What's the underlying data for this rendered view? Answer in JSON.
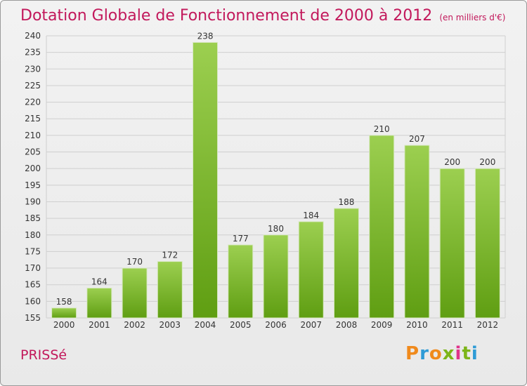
{
  "header": {
    "title": "Dotation Globale de Fonctionnement de 2000 à 2012",
    "subtitle": "(en milliers d'€)"
  },
  "footer": {
    "commune": "PRISSé",
    "logo_letters": [
      "P",
      "r",
      "o",
      "x",
      "i",
      "t",
      "i"
    ],
    "logo_colors": [
      "#f08a1c",
      "#2e9bd6",
      "#f08a1c",
      "#7cb518",
      "#e0338a",
      "#7cb518",
      "#2e9bd6"
    ]
  },
  "chart_data": {
    "type": "bar",
    "categories": [
      "2000",
      "2001",
      "2002",
      "2003",
      "2004",
      "2005",
      "2006",
      "2007",
      "2008",
      "2009",
      "2010",
      "2011",
      "2012"
    ],
    "values": [
      158,
      164,
      170,
      172,
      238,
      177,
      180,
      184,
      188,
      210,
      207,
      200,
      200
    ],
    "value_labels": [
      "158",
      "164",
      "170",
      "172",
      "238",
      "177",
      "180",
      "184",
      "188",
      "210",
      "207",
      "200",
      "200"
    ],
    "ylim": [
      155,
      240
    ],
    "yticks": [
      "155",
      "160",
      "165",
      "170",
      "175",
      "180",
      "185",
      "190",
      "195",
      "200",
      "205",
      "210",
      "215",
      "220",
      "225",
      "230",
      "235",
      "240"
    ],
    "grid": true,
    "colors": {
      "bar_light": "#9ccf50",
      "bar_dark": "#5f9e12",
      "grid": "#cfcfcf",
      "axis_text": "#333333"
    }
  }
}
